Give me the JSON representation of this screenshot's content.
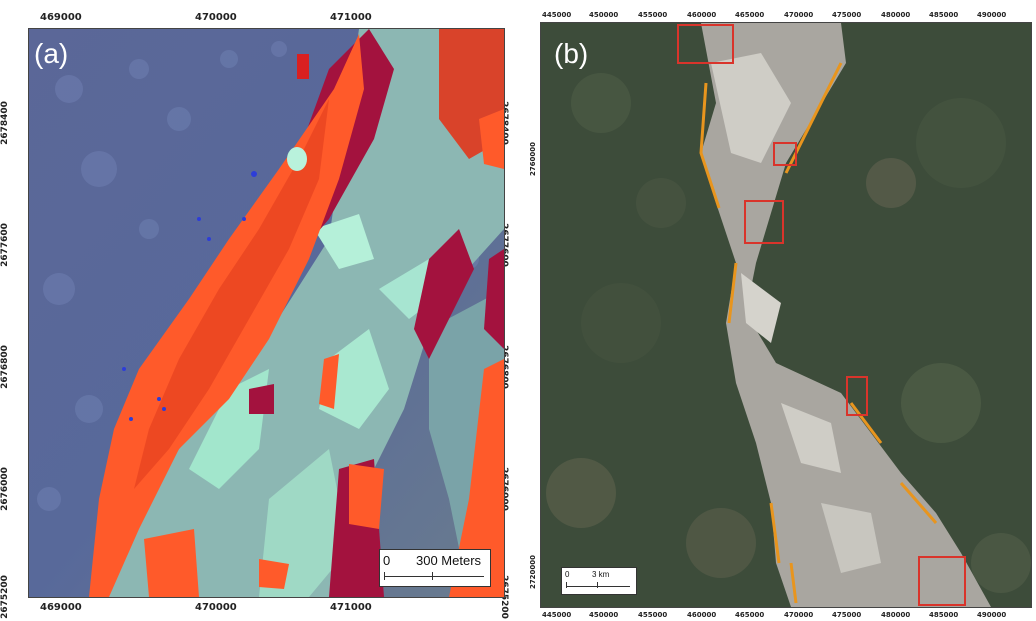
{
  "panel_a": {
    "label": "(a)",
    "x_ticks": [
      "469000",
      "470000",
      "471000"
    ],
    "y_ticks": [
      "2678400",
      "2677600",
      "2676800",
      "2676000",
      "2675200"
    ],
    "scale_bar": {
      "zero": "0",
      "text": "300 Meters"
    }
  },
  "panel_b": {
    "label": "(b)",
    "x_ticks": [
      "445000",
      "450000",
      "455000",
      "460000",
      "465000",
      "470000",
      "475000",
      "480000",
      "485000",
      "490000"
    ],
    "y_ticks": [
      "2760000",
      "2720000"
    ],
    "scale_bar": {
      "zero": "0",
      "text": "3 km"
    }
  },
  "colors": {
    "water": "#8fb9b4",
    "land_a": "#5e6f96",
    "vegetation_b": "#3d4c3a",
    "sandbar_orange": "#ff5a2a",
    "sandbar_dark": "#a3123e",
    "highlight_box": "#d9342b",
    "change_orange": "#e8951e"
  }
}
